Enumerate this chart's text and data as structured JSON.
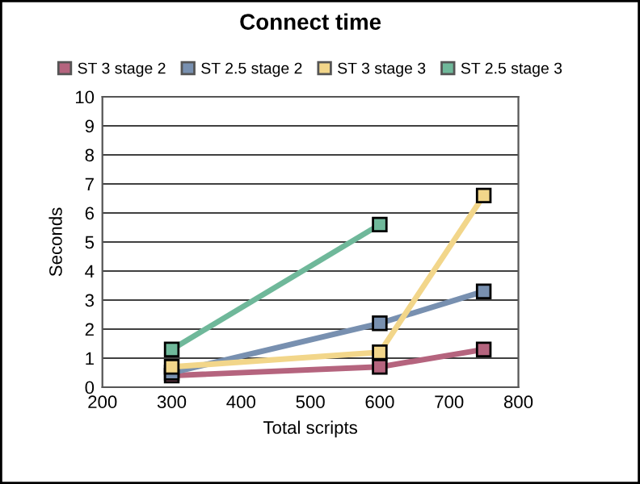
{
  "chart_data": {
    "type": "line",
    "title": "Connect time",
    "xlabel": "Total scripts",
    "ylabel": "Seconds",
    "xlim": [
      200,
      800
    ],
    "xticks": [
      200,
      300,
      400,
      500,
      600,
      700,
      800
    ],
    "ylim": [
      0,
      10
    ],
    "yticks": [
      0,
      1,
      2,
      3,
      4,
      5,
      6,
      7,
      8,
      9,
      10
    ],
    "grid": "y",
    "legend": "top",
    "marker": "square",
    "line_style": "solid",
    "series": [
      {
        "name": "ST 3 stage 2",
        "color": "#b5647e",
        "x": [
          300,
          600,
          750
        ],
        "values": [
          0.4,
          0.7,
          1.3
        ]
      },
      {
        "name": "ST 2.5 stage 2",
        "color": "#7890b0",
        "x": [
          300,
          600,
          750
        ],
        "values": [
          0.5,
          2.2,
          3.3
        ]
      },
      {
        "name": "ST 3 stage 3",
        "color": "#f2d68a",
        "x": [
          300,
          600,
          750
        ],
        "values": [
          0.7,
          1.2,
          6.6
        ]
      },
      {
        "name": "ST 2.5 stage 3",
        "color": "#6fb89a",
        "x": [
          300,
          600
        ],
        "values": [
          1.3,
          5.6
        ]
      }
    ]
  }
}
